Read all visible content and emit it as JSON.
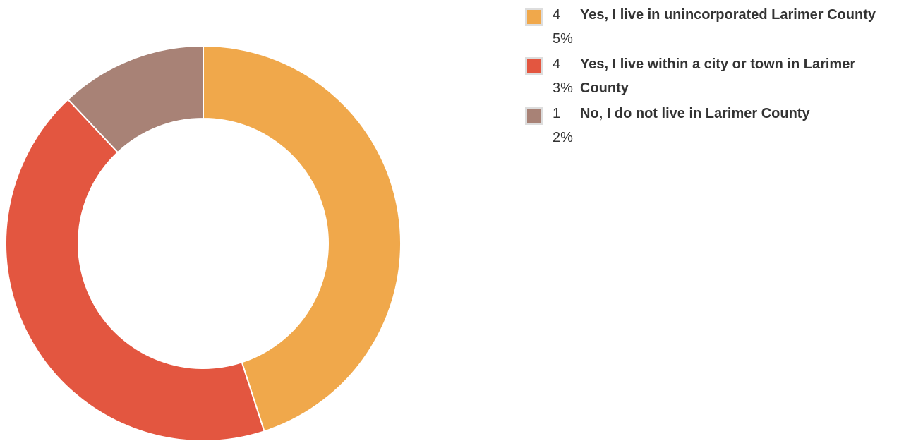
{
  "chart_data": {
    "type": "donut",
    "categories": [
      "Yes, I live in unincorporated Larimer County",
      "Yes, I live within a city or town in Larimer County",
      "No, I do not live in Larimer County"
    ],
    "values": [
      45,
      43,
      12
    ],
    "value_labels": [
      "45%",
      "43%",
      "12%"
    ],
    "colors": [
      "#f0a84b",
      "#e35640",
      "#a88276"
    ],
    "legend": "right"
  }
}
